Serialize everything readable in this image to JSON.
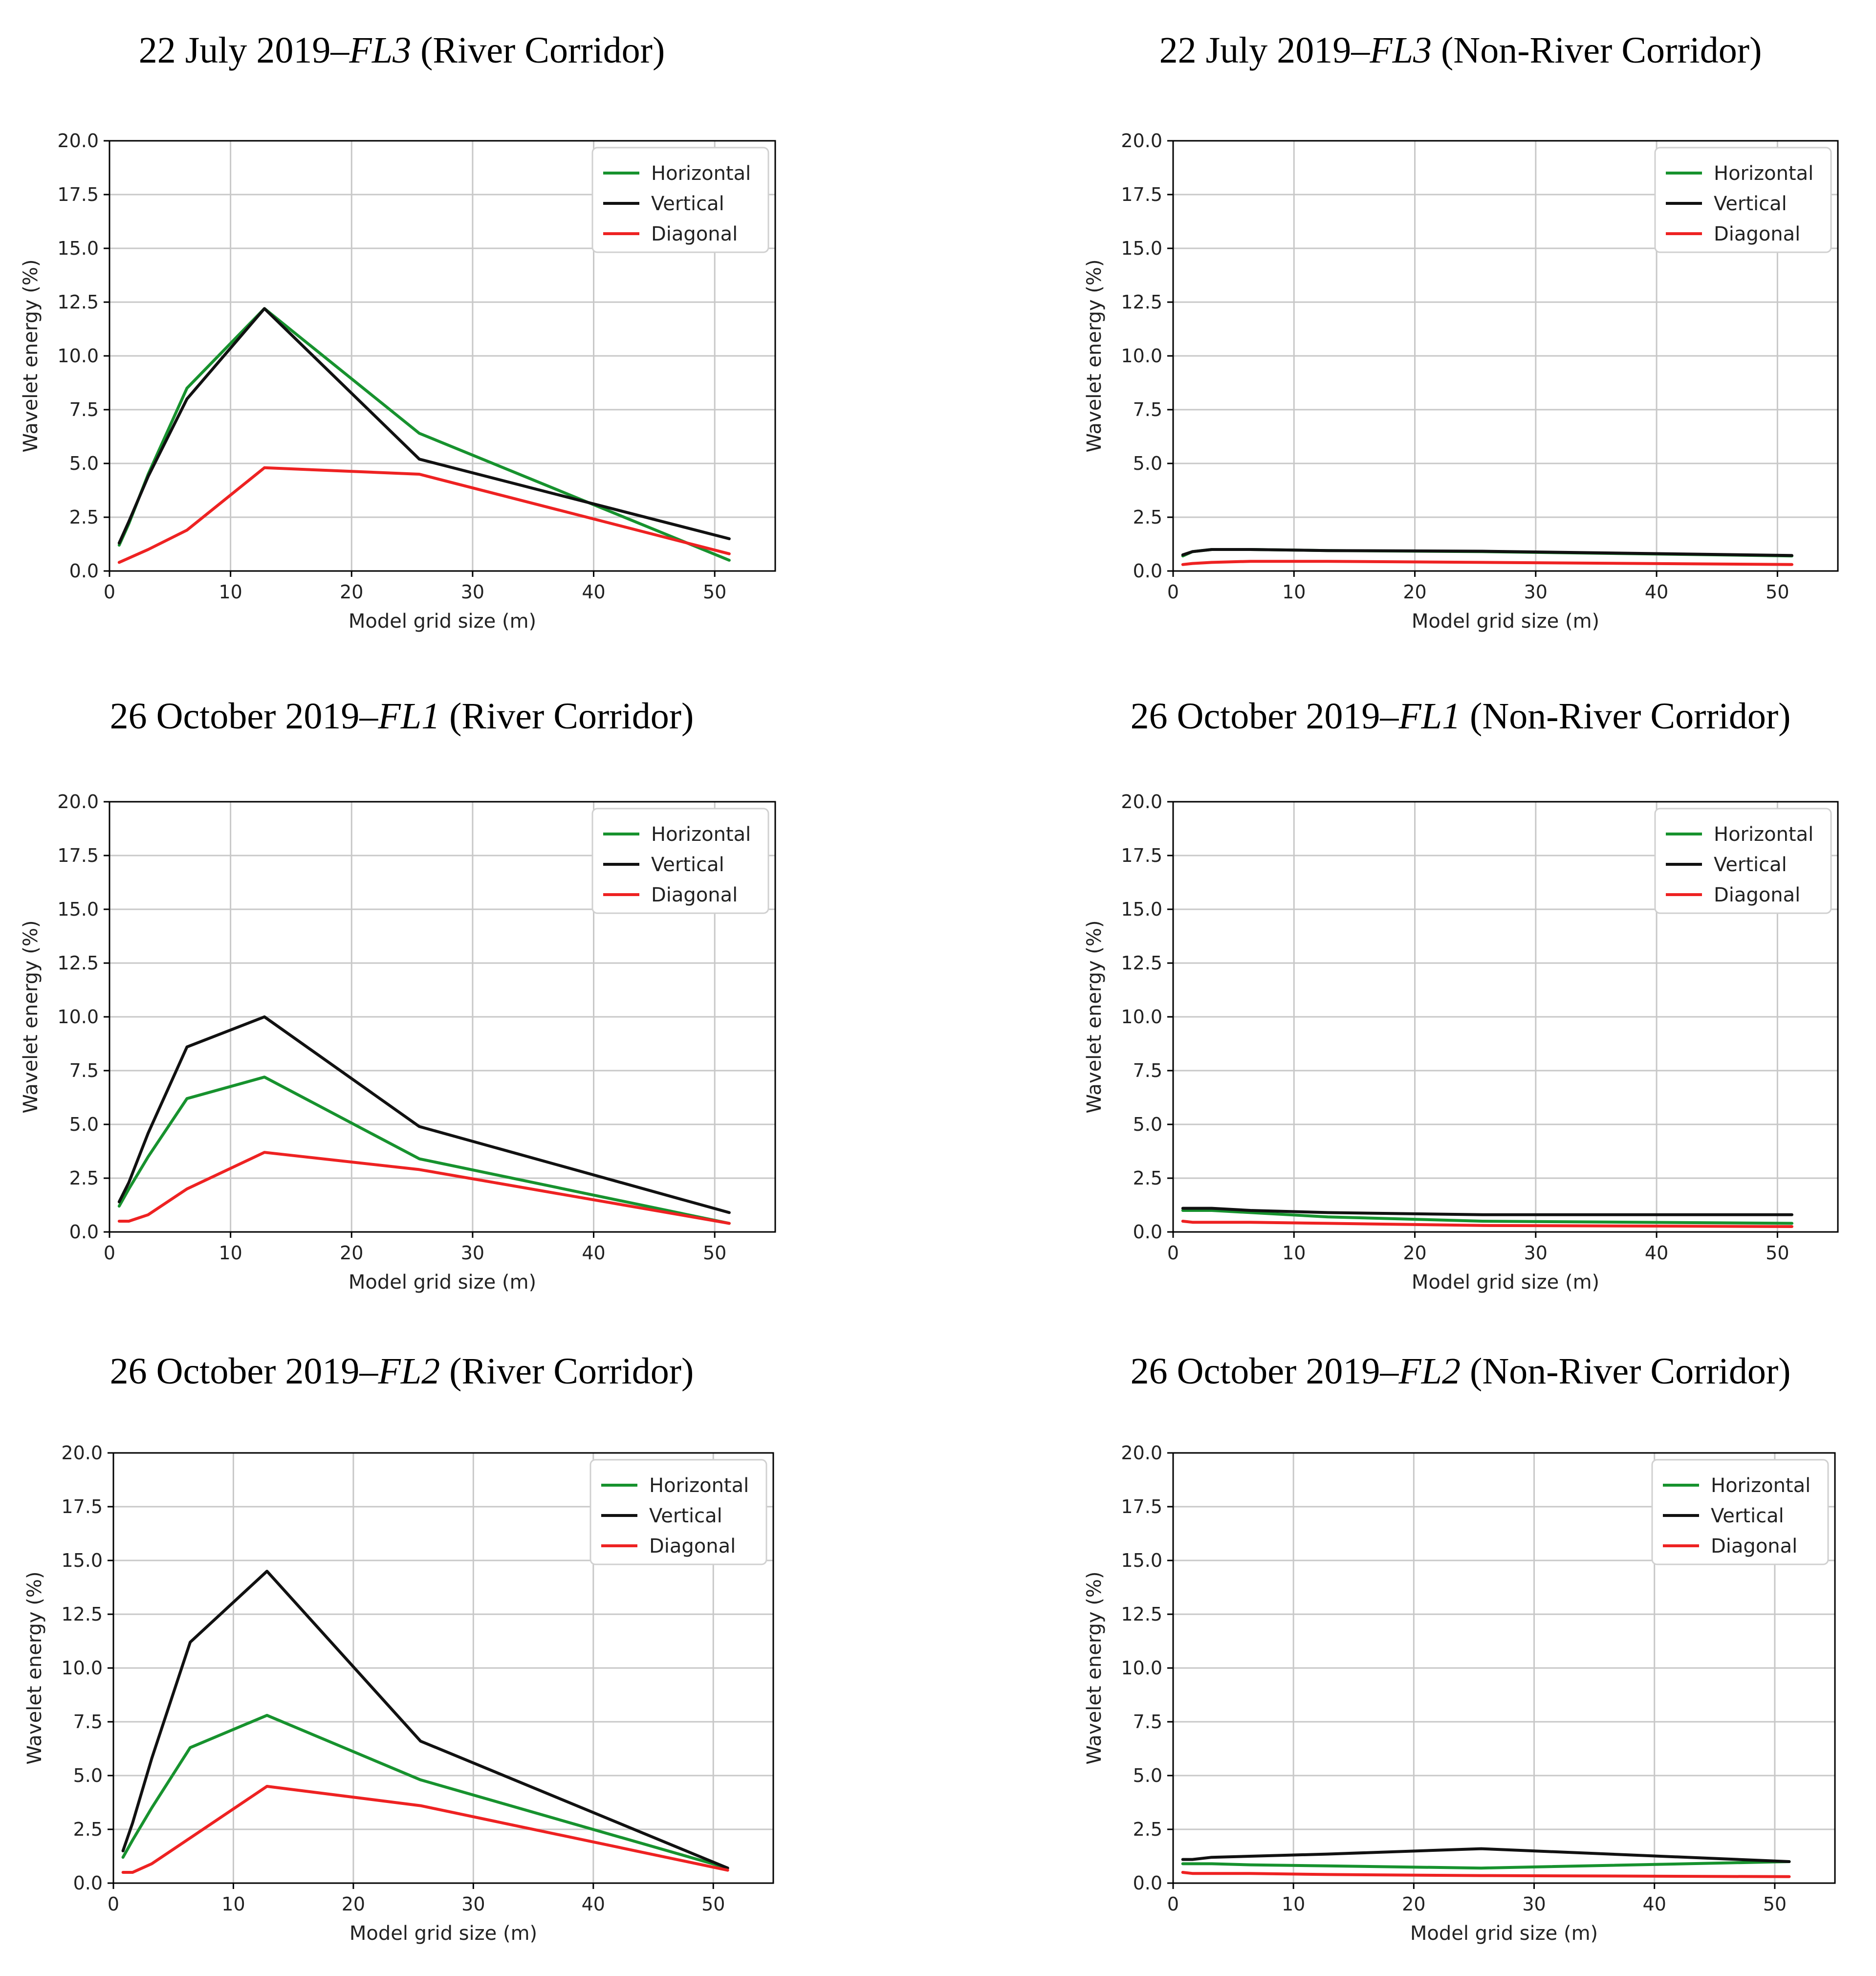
{
  "colors": {
    "Horizontal": "#17922e",
    "Vertical": "#111111",
    "Diagonal": "#ee2222"
  },
  "chart_data": [
    {
      "type": "line",
      "title_prefix": "22 July 2019–",
      "title_italic": "FL3",
      "title_suffix": " (River Corridor)",
      "xlabel": "Model grid size (m)",
      "ylabel": "Wavelet energy (%)",
      "xlim": [
        0,
        55
      ],
      "ylim": [
        0,
        20
      ],
      "xticks": [
        "0",
        "10",
        "20",
        "30",
        "40",
        "50"
      ],
      "yticks": [
        "0.0",
        "2.5",
        "5.0",
        "7.5",
        "10.0",
        "12.5",
        "15.0",
        "17.5",
        "20.0"
      ],
      "grid": true,
      "legend": "top-right",
      "x": [
        0.8,
        1.6,
        3.2,
        6.4,
        12.8,
        25.6,
        51.2
      ],
      "series": [
        {
          "name": "Horizontal",
          "values": [
            1.2,
            2.2,
            4.5,
            8.5,
            12.2,
            6.4,
            0.5
          ]
        },
        {
          "name": "Vertical",
          "values": [
            1.3,
            2.3,
            4.4,
            8.0,
            12.2,
            5.2,
            1.5
          ]
        },
        {
          "name": "Diagonal",
          "values": [
            0.4,
            0.6,
            1.0,
            1.9,
            4.8,
            4.5,
            0.8
          ]
        }
      ]
    },
    {
      "type": "line",
      "title_prefix": "22 July 2019–",
      "title_italic": "FL3",
      "title_suffix": " (Non-River Corridor)",
      "xlabel": "Model grid size (m)",
      "ylabel": "Wavelet energy (%)",
      "xlim": [
        0,
        55
      ],
      "ylim": [
        0,
        20
      ],
      "xticks": [
        "0",
        "10",
        "20",
        "30",
        "40",
        "50"
      ],
      "yticks": [
        "0.0",
        "2.5",
        "5.0",
        "7.5",
        "10.0",
        "12.5",
        "15.0",
        "17.5",
        "20.0"
      ],
      "grid": true,
      "legend": "top-right",
      "x": [
        0.8,
        1.6,
        3.2,
        6.4,
        12.8,
        25.6,
        51.2
      ],
      "series": [
        {
          "name": "Horizontal",
          "values": [
            0.7,
            0.9,
            1.0,
            1.0,
            0.95,
            0.9,
            0.7
          ]
        },
        {
          "name": "Vertical",
          "values": [
            0.75,
            0.9,
            1.0,
            1.0,
            0.95,
            0.92,
            0.72
          ]
        },
        {
          "name": "Diagonal",
          "values": [
            0.3,
            0.35,
            0.4,
            0.45,
            0.45,
            0.4,
            0.3
          ]
        }
      ]
    },
    {
      "type": "line",
      "title_prefix": "26 October 2019–",
      "title_italic": "FL1",
      "title_suffix": " (River Corridor)",
      "xlabel": "Model grid size (m)",
      "ylabel": "Wavelet energy (%)",
      "xlim": [
        0,
        55
      ],
      "ylim": [
        0,
        20
      ],
      "xticks": [
        "0",
        "10",
        "20",
        "30",
        "40",
        "50"
      ],
      "yticks": [
        "0.0",
        "2.5",
        "5.0",
        "7.5",
        "10.0",
        "12.5",
        "15.0",
        "17.5",
        "20.0"
      ],
      "grid": true,
      "legend": "top-right",
      "x": [
        0.8,
        1.6,
        3.2,
        6.4,
        12.8,
        25.6,
        51.2
      ],
      "series": [
        {
          "name": "Horizontal",
          "values": [
            1.2,
            2.0,
            3.5,
            6.2,
            7.2,
            3.4,
            0.4
          ]
        },
        {
          "name": "Vertical",
          "values": [
            1.4,
            2.3,
            4.6,
            8.6,
            10.0,
            4.9,
            0.9
          ]
        },
        {
          "name": "Diagonal",
          "values": [
            0.5,
            0.5,
            0.8,
            2.0,
            3.7,
            2.9,
            0.4
          ]
        }
      ]
    },
    {
      "type": "line",
      "title_prefix": "26 October 2019–",
      "title_italic": "FL1",
      "title_suffix": " (Non-River Corridor)",
      "xlabel": "Model grid size (m)",
      "ylabel": "Wavelet energy (%)",
      "xlim": [
        0,
        55
      ],
      "ylim": [
        0,
        20
      ],
      "xticks": [
        "0",
        "10",
        "20",
        "30",
        "40",
        "50"
      ],
      "yticks": [
        "0.0",
        "2.5",
        "5.0",
        "7.5",
        "10.0",
        "12.5",
        "15.0",
        "17.5",
        "20.0"
      ],
      "grid": true,
      "legend": "top-right",
      "x": [
        0.8,
        1.6,
        3.2,
        6.4,
        12.8,
        25.6,
        51.2
      ],
      "series": [
        {
          "name": "Horizontal",
          "values": [
            1.0,
            1.0,
            1.0,
            0.9,
            0.7,
            0.5,
            0.4
          ]
        },
        {
          "name": "Vertical",
          "values": [
            1.1,
            1.1,
            1.1,
            1.0,
            0.9,
            0.8,
            0.8
          ]
        },
        {
          "name": "Diagonal",
          "values": [
            0.5,
            0.45,
            0.45,
            0.45,
            0.4,
            0.3,
            0.25
          ]
        }
      ]
    },
    {
      "type": "line",
      "title_prefix": "26 October 2019–",
      "title_italic": "FL2",
      "title_suffix": " (River Corridor)",
      "xlabel": "Model grid size (m)",
      "ylabel": "Wavelet energy (%)",
      "xlim": [
        0,
        55
      ],
      "ylim": [
        0,
        20
      ],
      "xticks": [
        "0",
        "10",
        "20",
        "30",
        "40",
        "50"
      ],
      "yticks": [
        "0.0",
        "2.5",
        "5.0",
        "7.5",
        "10.0",
        "12.5",
        "15.0",
        "17.5",
        "20.0"
      ],
      "grid": true,
      "legend": "top-right",
      "x": [
        0.8,
        1.6,
        3.2,
        6.4,
        12.8,
        25.6,
        51.2
      ],
      "series": [
        {
          "name": "Horizontal",
          "values": [
            1.2,
            2.0,
            3.5,
            6.3,
            7.8,
            4.8,
            0.7
          ]
        },
        {
          "name": "Vertical",
          "values": [
            1.5,
            2.8,
            5.8,
            11.2,
            14.5,
            6.6,
            0.7
          ]
        },
        {
          "name": "Diagonal",
          "values": [
            0.5,
            0.5,
            0.9,
            2.1,
            4.5,
            3.6,
            0.6
          ]
        }
      ]
    },
    {
      "type": "line",
      "title_prefix": "26 October 2019–",
      "title_italic": "FL2",
      "title_suffix": " (Non-River Corridor)",
      "xlabel": "Model grid size (m)",
      "ylabel": "Wavelet energy (%)",
      "xlim": [
        0,
        55
      ],
      "ylim": [
        0,
        20
      ],
      "xticks": [
        "0",
        "10",
        "20",
        "30",
        "40",
        "50"
      ],
      "yticks": [
        "0.0",
        "2.5",
        "5.0",
        "7.5",
        "10.0",
        "12.5",
        "15.0",
        "17.5",
        "20.0"
      ],
      "grid": true,
      "legend": "top-right",
      "x": [
        0.8,
        1.6,
        3.2,
        6.4,
        12.8,
        25.6,
        51.2
      ],
      "series": [
        {
          "name": "Horizontal",
          "values": [
            0.9,
            0.9,
            0.9,
            0.85,
            0.8,
            0.7,
            1.0
          ]
        },
        {
          "name": "Vertical",
          "values": [
            1.1,
            1.1,
            1.2,
            1.25,
            1.35,
            1.6,
            1.0
          ]
        },
        {
          "name": "Diagonal",
          "values": [
            0.5,
            0.45,
            0.45,
            0.45,
            0.4,
            0.35,
            0.3
          ]
        }
      ]
    }
  ]
}
